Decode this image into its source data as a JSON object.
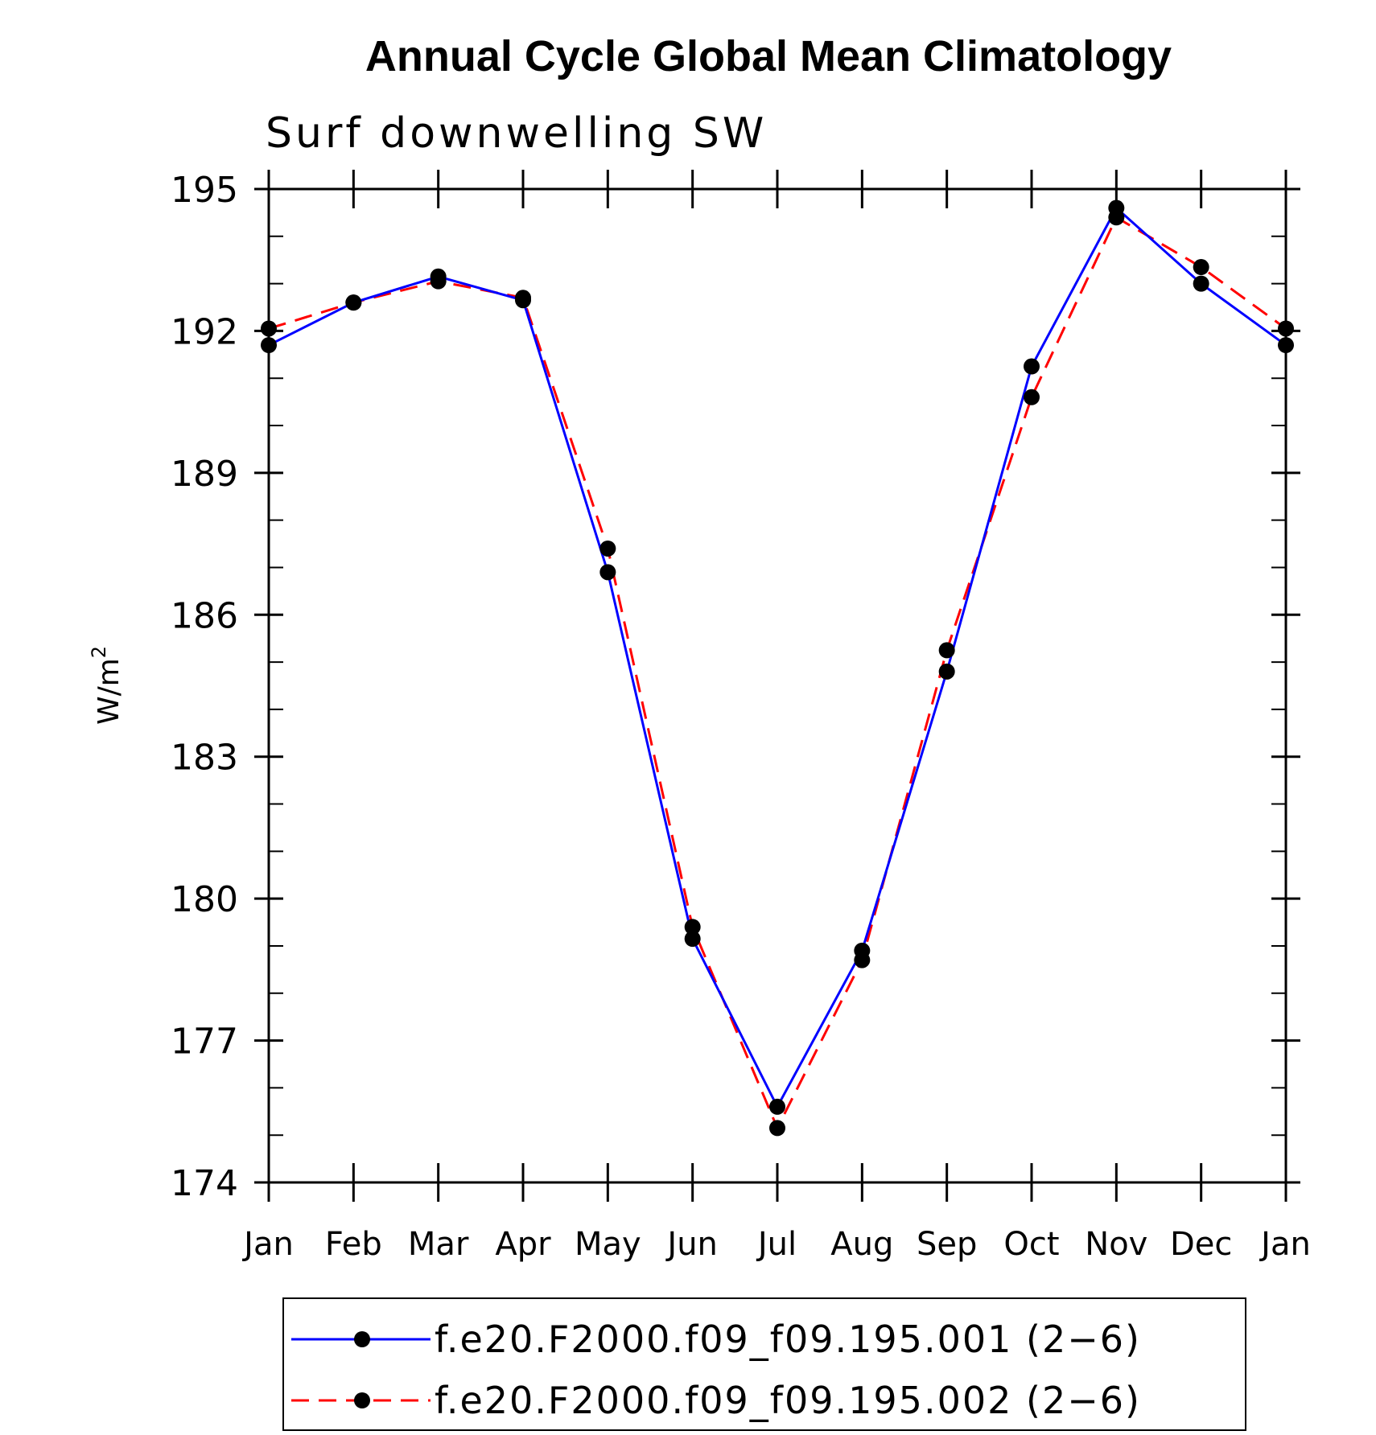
{
  "chart_data": {
    "type": "line",
    "title": "Annual Cycle Global Mean Climatology",
    "subtitle": "Surf downwelling SW",
    "ylabel": "W/m",
    "ylabel_superscript": "2",
    "xlabel": "",
    "categories": [
      "Jan",
      "Feb",
      "Mar",
      "Apr",
      "May",
      "Jun",
      "Jul",
      "Aug",
      "Sep",
      "Oct",
      "Nov",
      "Dec",
      "Jan"
    ],
    "ylim": [
      174,
      195
    ],
    "yticks": [
      174,
      177,
      180,
      183,
      186,
      189,
      192,
      195
    ],
    "grid": false,
    "legend_placement": "bottom",
    "series": [
      {
        "name": "f.e20.F2000.f09_f09.195.001 (2−6)",
        "color": "#0000ff",
        "dash": "solid",
        "marker": "filled-circle",
        "values": [
          191.7,
          192.6,
          193.15,
          192.65,
          186.9,
          179.15,
          175.6,
          178.9,
          184.8,
          191.25,
          194.6,
          193.0,
          191.7
        ]
      },
      {
        "name": "f.e20.F2000.f09_f09.195.002 (2−6)",
        "color": "#ff0000",
        "dash": "dashed",
        "marker": "filled-circle",
        "values": [
          192.05,
          192.6,
          193.05,
          192.7,
          187.4,
          179.4,
          175.15,
          178.7,
          185.25,
          190.6,
          194.4,
          193.35,
          192.05
        ]
      }
    ]
  }
}
